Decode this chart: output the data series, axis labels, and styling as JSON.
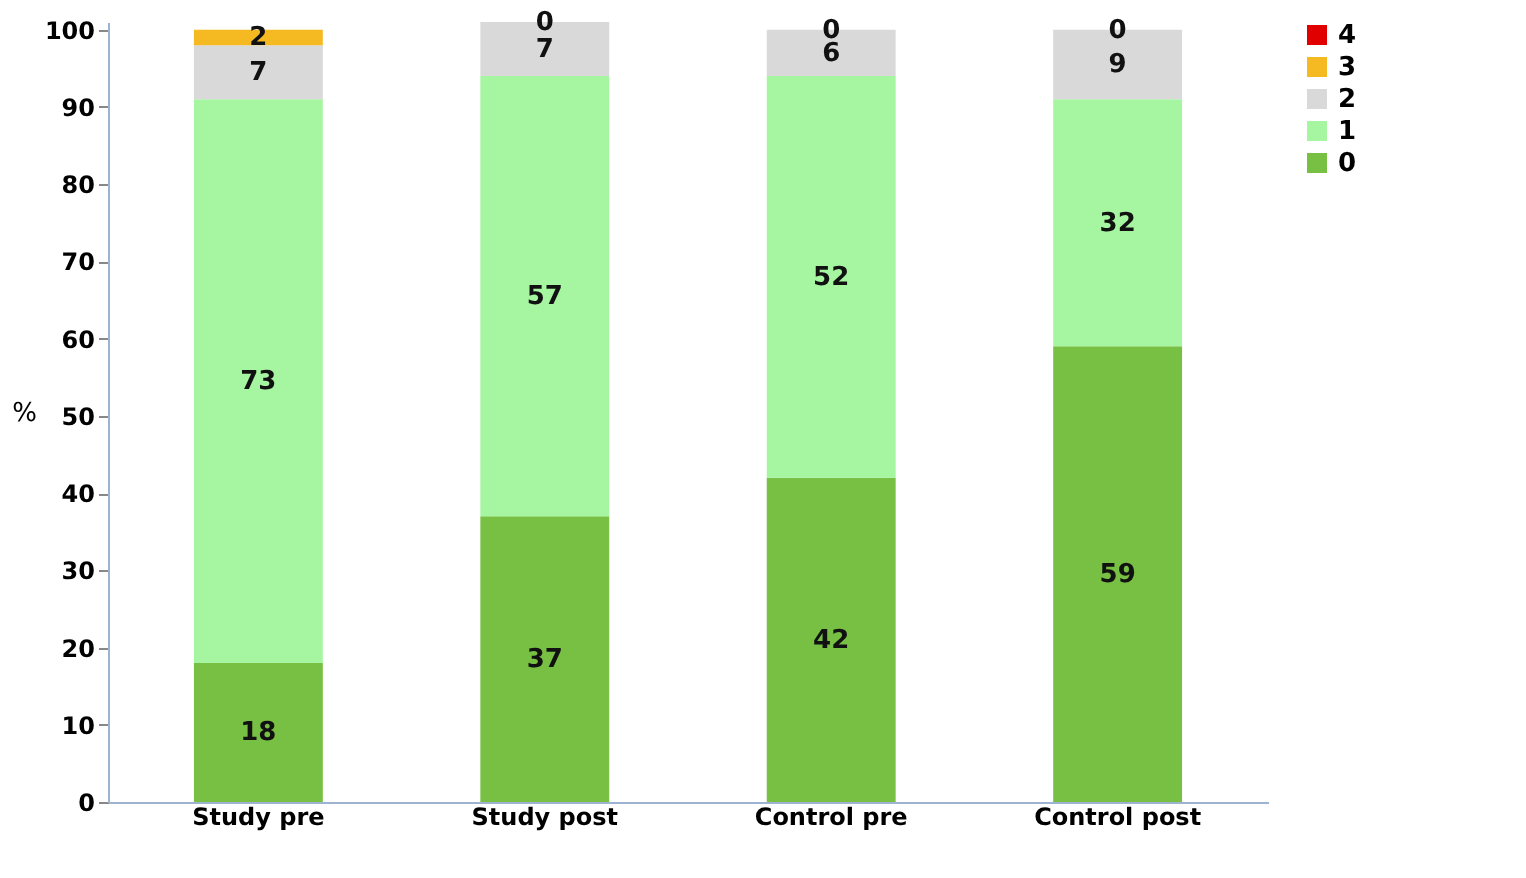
{
  "chart_data": {
    "type": "bar",
    "stacked": true,
    "ylabel": "%",
    "categories": [
      "Study pre",
      "Study post",
      "Control pre",
      "Control post"
    ],
    "series": [
      {
        "name": "0",
        "color": "#77c043",
        "values": [
          18,
          37,
          42,
          59
        ],
        "value_labels": [
          "18",
          "37",
          "42",
          "59"
        ]
      },
      {
        "name": "1",
        "color": "#a6f5a0",
        "values": [
          73,
          57,
          52,
          32
        ],
        "value_labels": [
          "73",
          "57",
          "52",
          "32"
        ]
      },
      {
        "name": "2",
        "color": "#d9d9d9",
        "values": [
          7,
          7,
          6,
          9
        ],
        "value_labels": [
          "7",
          "7",
          "6",
          "9"
        ]
      },
      {
        "name": "3",
        "color": "#f5b921",
        "values": [
          2,
          0,
          0,
          0
        ],
        "value_labels": [
          "2",
          "0",
          "0",
          "0"
        ]
      },
      {
        "name": "4",
        "color": "#e00000",
        "values": [
          0,
          0,
          0,
          0
        ]
      }
    ],
    "ylim": [
      0,
      101
    ],
    "yticks": [
      0,
      10,
      20,
      30,
      40,
      50,
      60,
      70,
      80,
      90,
      100
    ],
    "grid": false,
    "legend": "right"
  }
}
